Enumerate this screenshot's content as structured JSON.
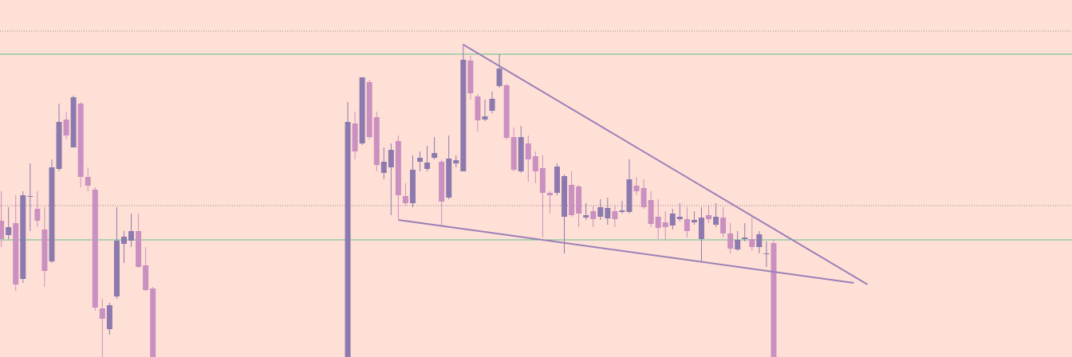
{
  "chart_data": {
    "type": "candlestick",
    "background": "#ffe0d6",
    "up_color": "#8c7aae",
    "down_color": "#c990c0",
    "xlim": [
      -0.18,
      148.33
    ],
    "ylim": [
      0,
      448
    ],
    "x": [
      0,
      1,
      2,
      3,
      4,
      5,
      6,
      7,
      8,
      9,
      10,
      11,
      12,
      13,
      14,
      15,
      16,
      17,
      18,
      19,
      20,
      21,
      48,
      49,
      50,
      51,
      52,
      53,
      54,
      55,
      56,
      57,
      58,
      59,
      60,
      61,
      62,
      63,
      64,
      65,
      66,
      67,
      68,
      69,
      70,
      71,
      72,
      73,
      74,
      75,
      76,
      77,
      78,
      79,
      80,
      81,
      82,
      83,
      84,
      85,
      86,
      87,
      88,
      89,
      90,
      91,
      92,
      93,
      94,
      95,
      96,
      97,
      98,
      99,
      100,
      101,
      102,
      103,
      104,
      105,
      106,
      107
    ],
    "open": [
      171,
      153,
      168,
      98,
      201,
      186,
      160,
      120,
      236,
      298,
      263,
      318,
      226,
      210,
      61,
      35,
      76,
      142,
      146,
      158,
      115,
      86,
      0,
      293,
      268,
      345,
      301,
      231,
      238,
      271,
      202,
      193,
      245,
      236,
      250,
      245,
      200,
      243,
      233,
      372,
      327,
      298,
      309,
      340,
      341,
      276,
      233,
      268,
      252,
      237,
      206,
      206,
      176,
      216,
      214,
      175,
      183,
      176,
      174,
      183,
      182,
      182,
      215,
      212,
      197,
      176,
      169,
      165,
      173,
      173,
      169,
      148,
      178,
      166,
      175,
      155,
      135,
      148,
      148,
      138,
      129,
      143
    ],
    "high": [
      208,
      188,
      203,
      208,
      243,
      208,
      188,
      248,
      318,
      308,
      328,
      320,
      238,
      213,
      73,
      68,
      188,
      158,
      180,
      180,
      138,
      88,
      320,
      308,
      351,
      348,
      308,
      263,
      268,
      278,
      218,
      253,
      258,
      265,
      276,
      248,
      278,
      253,
      393,
      378,
      330,
      323,
      333,
      380,
      343,
      288,
      290,
      278,
      258,
      253,
      208,
      243,
      229,
      233,
      216,
      193,
      190,
      198,
      200,
      190,
      196,
      248,
      226,
      223,
      208,
      198,
      183,
      186,
      193,
      188,
      183,
      188,
      190,
      193,
      188,
      168,
      158,
      168,
      178,
      158,
      145,
      148
    ],
    "low": [
      138,
      148,
      83,
      93,
      158,
      163,
      88,
      118,
      233,
      273,
      263,
      213,
      208,
      58,
      0,
      28,
      73,
      118,
      138,
      112,
      83,
      0,
      0,
      248,
      266,
      273,
      233,
      223,
      178,
      173,
      190,
      188,
      233,
      233,
      248,
      165,
      198,
      238,
      233,
      323,
      283,
      296,
      306,
      338,
      273,
      233,
      231,
      220,
      218,
      150,
      180,
      203,
      130,
      176,
      163,
      172,
      163,
      172,
      166,
      163,
      180,
      180,
      203,
      186,
      163,
      148,
      146,
      160,
      170,
      150,
      166,
      120,
      168,
      163,
      150,
      130,
      133,
      145,
      133,
      130,
      113,
      0
    ],
    "close": [
      148,
      163,
      91,
      203,
      202,
      171,
      108,
      238,
      295,
      278,
      326,
      226,
      215,
      62,
      48,
      65,
      146,
      151,
      158,
      113,
      84,
      0,
      295,
      258,
      351,
      276,
      241,
      245,
      260,
      203,
      193,
      235,
      250,
      244,
      256,
      195,
      249,
      247,
      373,
      331,
      297,
      302,
      324,
      362,
      275,
      235,
      276,
      248,
      233,
      206,
      203,
      239,
      227,
      178,
      180,
      178,
      173,
      188,
      187,
      173,
      184,
      223,
      208,
      188,
      167,
      162,
      163,
      180,
      176,
      158,
      172,
      175,
      173,
      176,
      155,
      136,
      147,
      150,
      138,
      154,
      130,
      0
    ],
    "levels": [
      {
        "value": 409,
        "color": "#8a8a8a",
        "style": "dotted"
      },
      {
        "value": 380,
        "color": "#5fbf8a",
        "style": "solid"
      },
      {
        "value": 190,
        "color": "#8a8a8a",
        "style": "dotted"
      },
      {
        "value": 147,
        "color": "#5fbf8a",
        "style": "solid"
      }
    ],
    "trendlines": [
      {
        "x": [
          64,
          120
        ],
        "values": [
          392,
          91
        ],
        "color": "#9a80b8"
      },
      {
        "x": [
          55,
          118.1
        ],
        "values": [
          172,
          93
        ],
        "color": "#9a80b8"
      }
    ]
  }
}
